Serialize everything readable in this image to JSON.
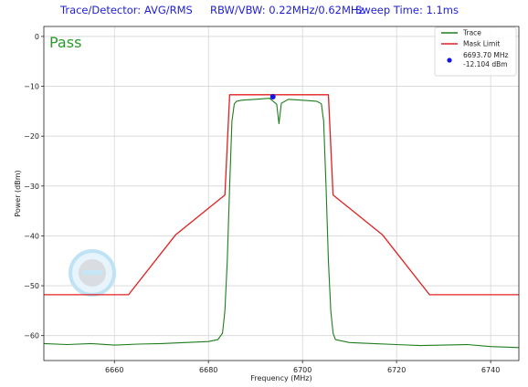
{
  "header": {
    "detector": "Trace/Detector: AVG/RMS",
    "bandwidth": "RBW/VBW: 0.22MHz/0.62MHz",
    "sweep": "Sweep Time: 1.1ms"
  },
  "chart_data": {
    "type": "line",
    "status_text": "Pass",
    "status_color": "#2a9a2a",
    "xlabel": "Frequency (MHz)",
    "ylabel": "Power (dBm)",
    "xlim": [
      6645,
      6746
    ],
    "ylim": [
      -65,
      2
    ],
    "x_ticks": [
      6660,
      6680,
      6700,
      6720,
      6740
    ],
    "y_ticks": [
      0,
      -10,
      -20,
      -30,
      -40,
      -50,
      -60
    ],
    "grid": true,
    "legend_position": "top-right",
    "series": [
      {
        "name": "Trace",
        "color": "#1e7d1e",
        "x": [
          6645,
          6650,
          6655,
          6660,
          6665,
          6670,
          6675,
          6680,
          6682,
          6683,
          6683.5,
          6684,
          6684.5,
          6685,
          6685.5,
          6686,
          6687,
          6690,
          6693,
          6694.5,
          6695,
          6695.5,
          6697,
          6700,
          6703,
          6704,
          6704.5,
          6705,
          6705.5,
          6706,
          6706.5,
          6707,
          6710,
          6715,
          6720,
          6725,
          6730,
          6735,
          6740,
          6746
        ],
        "y": [
          -61.6,
          -61.8,
          -61.6,
          -61.9,
          -61.7,
          -61.6,
          -61.4,
          -61.2,
          -60.8,
          -59.5,
          -55,
          -45,
          -30,
          -17,
          -13.5,
          -13,
          -12.8,
          -12.6,
          -12.4,
          -13.6,
          -17.5,
          -13.4,
          -12.6,
          -12.8,
          -13,
          -13.5,
          -17,
          -30,
          -45,
          -55,
          -59.5,
          -60.8,
          -61.4,
          -61.6,
          -61.8,
          -62,
          -61.9,
          -61.8,
          -62.2,
          -62.4
        ]
      },
      {
        "name": "Mask Limit",
        "color": "#e02020",
        "x": [
          6645,
          6663,
          6673,
          6683.5,
          6684.5,
          6705.5,
          6706.5,
          6717,
          6727,
          6746
        ],
        "y": [
          -51.8,
          -51.8,
          -39.8,
          -31.8,
          -11.7,
          -11.7,
          -31.8,
          -39.8,
          -51.8,
          -51.8
        ]
      }
    ],
    "marker": {
      "x": 6693.7,
      "y": -12.104,
      "color": "#1414e6",
      "label_freq": "6693.70 MHz",
      "label_power": "-12.104 dBm"
    }
  }
}
